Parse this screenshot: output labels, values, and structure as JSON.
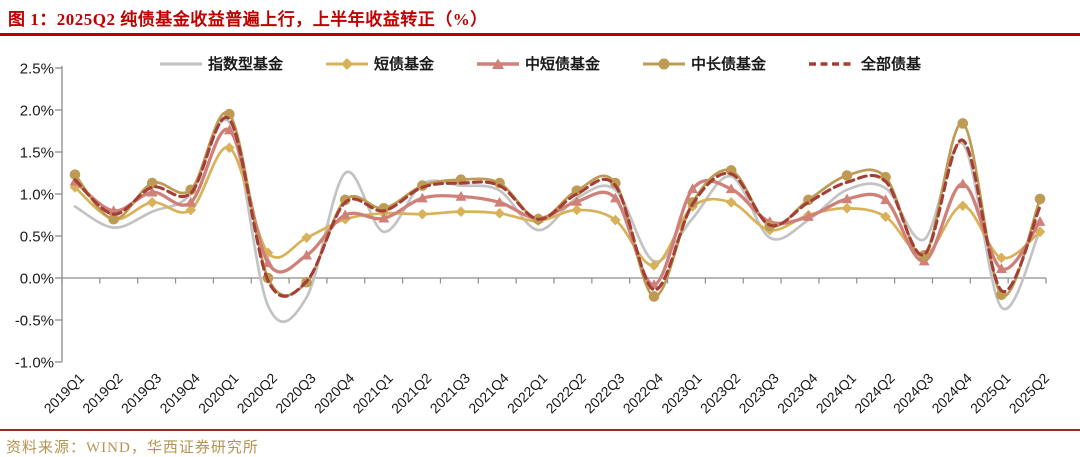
{
  "title": "图 1：2025Q2 纯债基金收益普遍上行，上半年收益转正（%）",
  "footer": {
    "source": "资料来源：WIND，华西证券研究所"
  },
  "colors": {
    "title": "#C00000",
    "title_rule": "#C00000",
    "footer_rule": "#9C2B23",
    "footer_text": "#B69350",
    "axis_line": "#8C8C8C",
    "axis_text": "#1A1A1A"
  },
  "chart_data": {
    "type": "line",
    "title": "2025Q2 纯债基金收益普遍上行，上半年收益转正（%）",
    "xlabel": "",
    "ylabel": "",
    "ylim": [
      -1.0,
      2.5
    ],
    "grid": false,
    "legend_position": "top",
    "y_ticks": [
      "2.5%",
      "2.0%",
      "1.5%",
      "1.0%",
      "0.5%",
      "0.0%",
      "-0.5%",
      "-1.0%"
    ],
    "categories": [
      "2019Q1",
      "2019Q2",
      "2019Q3",
      "2019Q4",
      "2020Q1",
      "2020Q2",
      "2020Q3",
      "2020Q4",
      "2021Q1",
      "2021Q2",
      "2021Q3",
      "2021Q4",
      "2022Q1",
      "2022Q2",
      "2022Q3",
      "2022Q4",
      "2023Q1",
      "2023Q2",
      "2023Q3",
      "2023Q4",
      "2024Q1",
      "2024Q2",
      "2024Q3",
      "2024Q4",
      "2025Q1",
      "2025Q2"
    ],
    "series": [
      {
        "name": "指数型基金",
        "color": "#C3C3C3",
        "marker": "none",
        "dash": false,
        "values": [
          0.85,
          0.6,
          0.79,
          1.0,
          1.85,
          -0.33,
          -0.23,
          1.25,
          0.55,
          1.12,
          1.1,
          1.04,
          0.57,
          0.95,
          1.05,
          0.2,
          0.71,
          1.21,
          0.48,
          0.69,
          1.05,
          1.07,
          0.46,
          1.6,
          -0.35,
          0.57
        ]
      },
      {
        "name": "短债基金",
        "color": "#D8B159",
        "marker": "diamond",
        "dash": false,
        "values": [
          1.08,
          0.7,
          0.9,
          0.81,
          1.55,
          0.3,
          0.48,
          0.7,
          0.77,
          0.76,
          0.79,
          0.77,
          0.68,
          0.81,
          0.69,
          0.15,
          0.85,
          0.9,
          0.57,
          0.75,
          0.83,
          0.73,
          0.27,
          0.86,
          0.24,
          0.55
        ]
      },
      {
        "name": "中短债基金",
        "color": "#CF8078",
        "marker": "triangle",
        "dash": false,
        "values": [
          1.15,
          0.8,
          1.02,
          0.9,
          1.76,
          0.18,
          0.27,
          0.75,
          0.71,
          0.95,
          0.97,
          0.9,
          0.71,
          0.91,
          0.95,
          -0.08,
          1.06,
          1.06,
          0.67,
          0.73,
          0.94,
          0.93,
          0.2,
          1.12,
          0.11,
          0.67
        ]
      },
      {
        "name": "中长债基金",
        "color": "#BE9B55",
        "marker": "circle",
        "dash": false,
        "values": [
          1.23,
          0.7,
          1.13,
          1.05,
          1.95,
          0.0,
          -0.05,
          0.93,
          0.83,
          1.1,
          1.17,
          1.13,
          0.7,
          1.04,
          1.13,
          -0.22,
          0.9,
          1.28,
          0.62,
          0.93,
          1.22,
          1.2,
          0.27,
          1.84,
          -0.2,
          0.94
        ]
      },
      {
        "name": "全部债基",
        "color": "#A43F35",
        "marker": "none",
        "dash": true,
        "values": [
          1.17,
          0.76,
          1.08,
          1.01,
          1.89,
          -0.03,
          -0.04,
          0.9,
          0.8,
          1.08,
          1.13,
          1.1,
          0.7,
          1.0,
          1.1,
          -0.14,
          0.88,
          1.24,
          0.63,
          0.9,
          1.14,
          1.15,
          0.28,
          1.64,
          -0.15,
          0.85
        ]
      }
    ]
  }
}
